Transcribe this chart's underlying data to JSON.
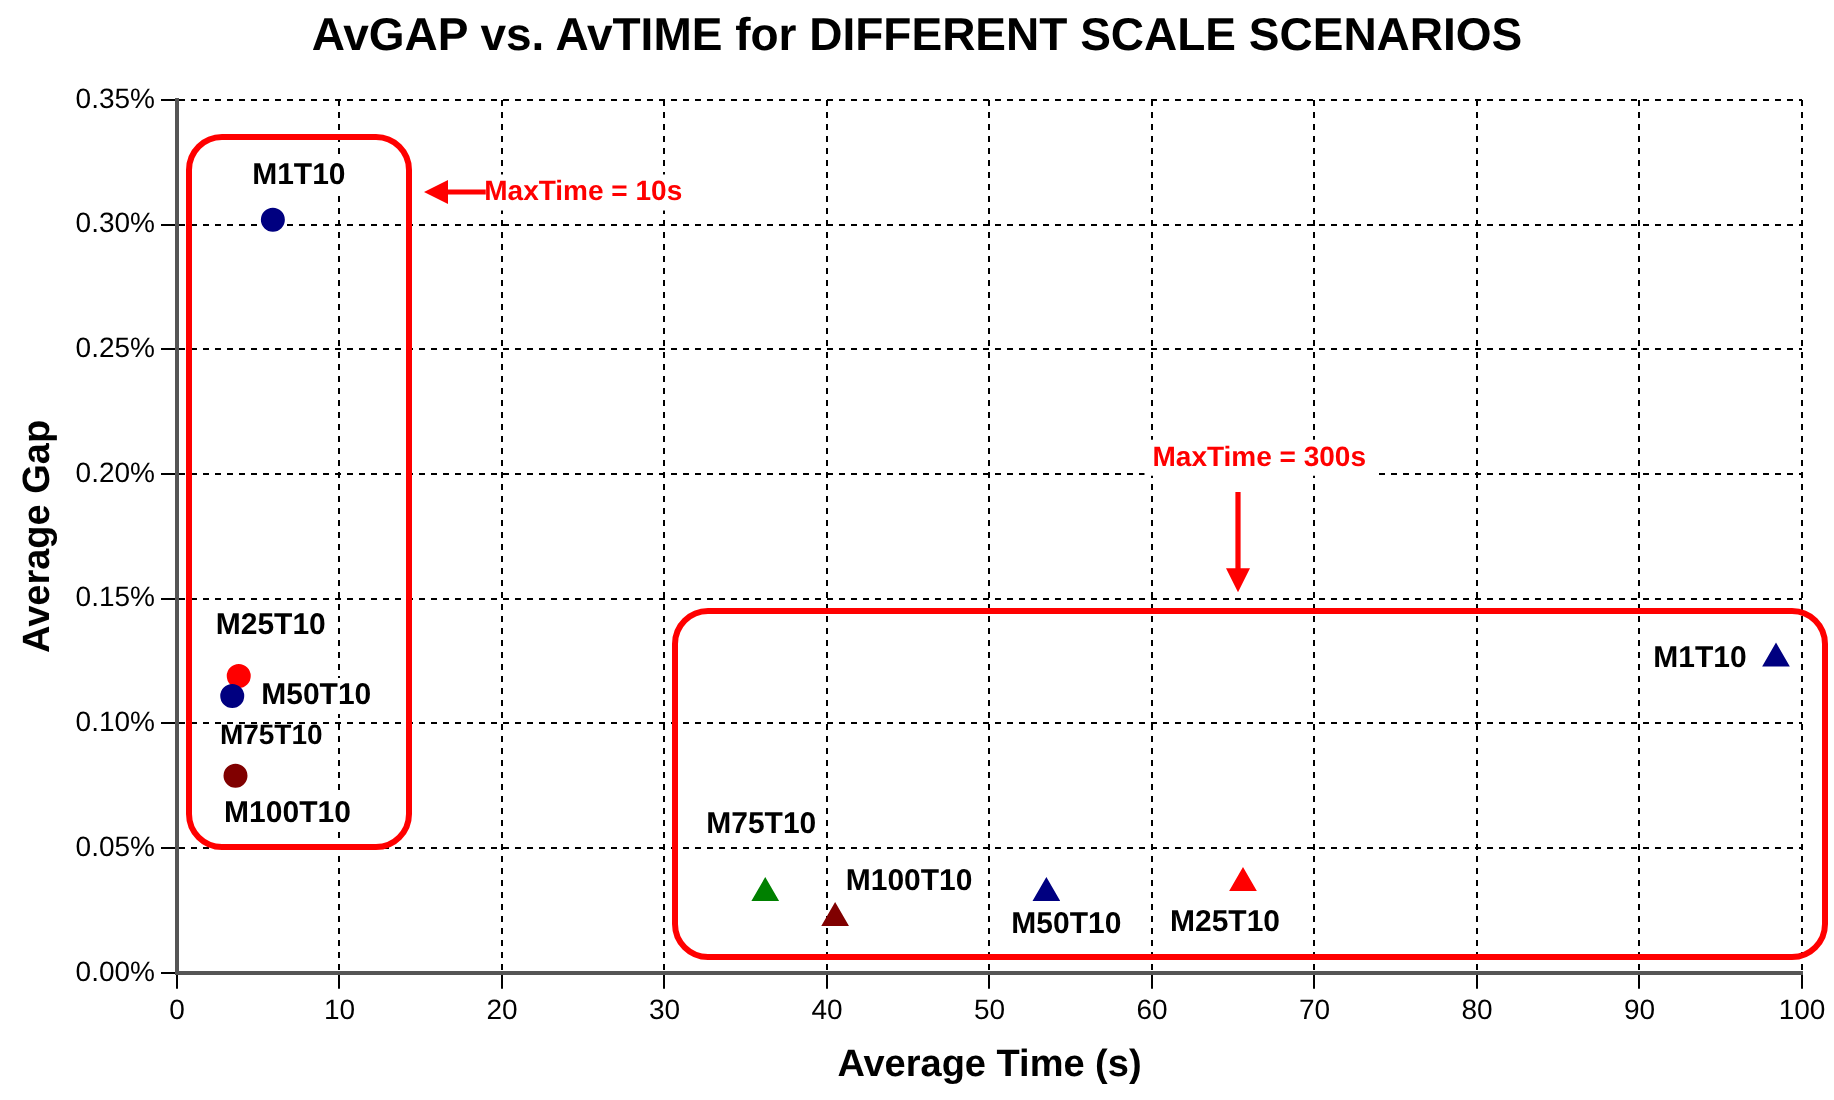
{
  "chart_data": {
    "type": "scatter",
    "title": "AvGAP vs. AvTIME for DIFFERENT SCALE SCENARIOS",
    "xlabel": "Average Time (s)",
    "ylabel": "Average Gap",
    "xlim": [
      0,
      100
    ],
    "xticks": [
      0,
      10,
      20,
      30,
      40,
      50,
      60,
      70,
      80,
      90,
      100
    ],
    "ylim": [
      0,
      0.35
    ],
    "yticks": [
      {
        "value": 0,
        "label": "0.00%"
      },
      {
        "value": 0.05,
        "label": "0.05%"
      },
      {
        "value": 0.1,
        "label": "0.10%"
      },
      {
        "value": 0.15,
        "label": "0.15%"
      },
      {
        "value": 0.2,
        "label": "0.20%"
      },
      {
        "value": 0.25,
        "label": "0.25%"
      },
      {
        "value": 0.3,
        "label": "0.30%"
      },
      {
        "value": 0.35,
        "label": "0.35%"
      }
    ],
    "grid": true,
    "legend": false,
    "series": [
      {
        "marker": "circle",
        "x": [
          5.9,
          3.8,
          3.4,
          3.6
        ],
        "values": [
          0.302,
          0.119,
          0.111,
          0.079
        ],
        "colors": [
          "#000080",
          "#ff0000",
          "#000080",
          "#800000"
        ]
      },
      {
        "marker": "triangle",
        "x": [
          98.4,
          65.6,
          53.5,
          36.2,
          40.5
        ],
        "values": [
          0.126,
          0.036,
          0.032,
          0.032,
          0.022
        ],
        "colors": [
          "#000080",
          "#ff0000",
          "#000080",
          "#008000",
          "#800000"
        ]
      }
    ],
    "annotations": [
      "MaxTime = 10s",
      "MaxTime = 300s",
      "M75T10",
      {
        "text": "M1T10",
        "x": 5.9,
        "y": 0.302
      },
      {
        "text": "M25T10",
        "x": 3.8,
        "y": 0.119
      },
      {
        "text": "M50T10",
        "x": 3.4,
        "y": 0.111
      },
      {
        "text": "M100T10",
        "x": 3.6,
        "y": 0.079
      },
      {
        "text": "M1T10",
        "x": 98.4,
        "y": 0.126
      },
      {
        "text": "M25T10",
        "x": 65.6,
        "y": 0.036
      },
      {
        "text": "M50T10",
        "x": 53.5,
        "y": 0.032
      },
      {
        "text": "M75T10",
        "x": 36.2,
        "y": 0.032
      },
      {
        "text": "M100T10",
        "x": 40.5,
        "y": 0.022
      }
    ]
  }
}
